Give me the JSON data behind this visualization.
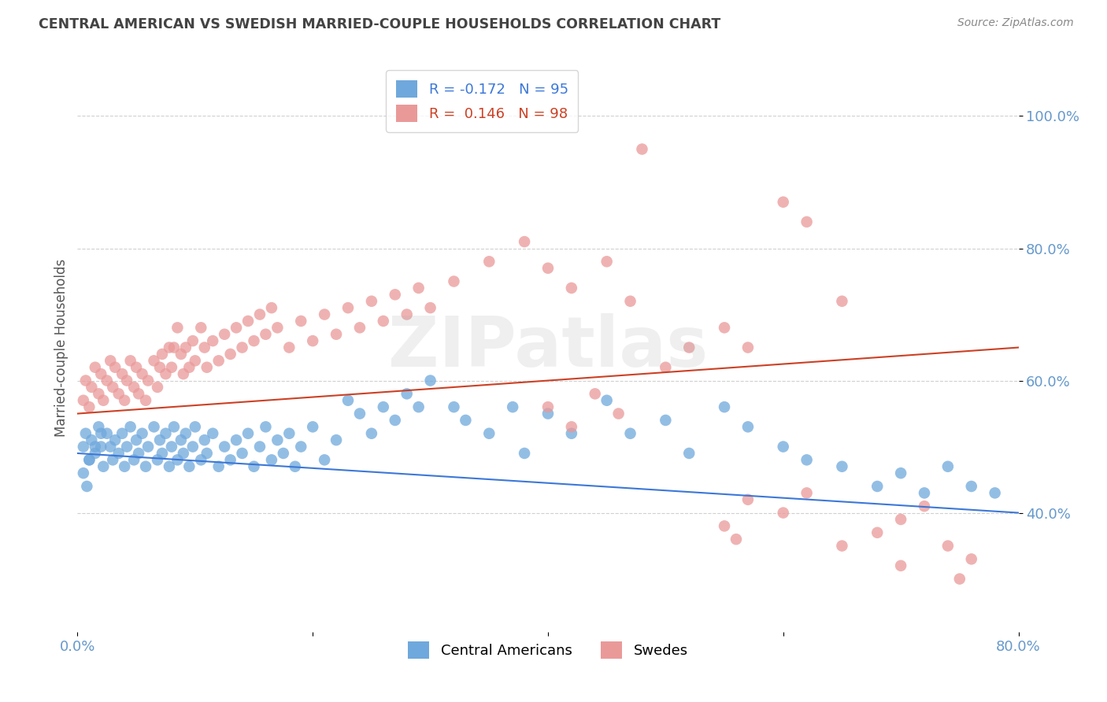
{
  "title": "CENTRAL AMERICAN VS SWEDISH MARRIED-COUPLE HOUSEHOLDS CORRELATION CHART",
  "source": "Source: ZipAtlas.com",
  "ylabel": "Married-couple Households",
  "ytick_labels": [
    "40.0%",
    "60.0%",
    "80.0%",
    "100.0%"
  ],
  "yticks": [
    0.4,
    0.6,
    0.8,
    1.0
  ],
  "xlim": [
    0.0,
    0.8
  ],
  "ylim": [
    0.22,
    1.08
  ],
  "watermark": "ZIPatlas",
  "blue_R": -0.172,
  "blue_N": 95,
  "pink_R": 0.146,
  "pink_N": 98,
  "blue_color": "#6fa8dc",
  "pink_color": "#ea9999",
  "blue_line_color": "#3c78d8",
  "pink_line_color": "#cc4125",
  "legend_label_blue": "Central Americans",
  "legend_label_pink": "Swedes",
  "title_color": "#434343",
  "axis_label_color": "#6699cc",
  "grid_color": "#d0d0d0",
  "blue_scatter_x": [
    0.005,
    0.007,
    0.01,
    0.012,
    0.015,
    0.018,
    0.02,
    0.022,
    0.025,
    0.028,
    0.03,
    0.032,
    0.035,
    0.038,
    0.04,
    0.042,
    0.045,
    0.048,
    0.05,
    0.052,
    0.055,
    0.058,
    0.06,
    0.065,
    0.068,
    0.07,
    0.072,
    0.075,
    0.078,
    0.08,
    0.082,
    0.085,
    0.088,
    0.09,
    0.092,
    0.095,
    0.098,
    0.1,
    0.105,
    0.108,
    0.11,
    0.115,
    0.12,
    0.125,
    0.13,
    0.135,
    0.14,
    0.145,
    0.15,
    0.155,
    0.16,
    0.165,
    0.17,
    0.175,
    0.18,
    0.185,
    0.19,
    0.2,
    0.21,
    0.22,
    0.23,
    0.24,
    0.25,
    0.26,
    0.27,
    0.28,
    0.29,
    0.3,
    0.32,
    0.33,
    0.35,
    0.37,
    0.38,
    0.4,
    0.42,
    0.45,
    0.47,
    0.5,
    0.52,
    0.55,
    0.57,
    0.6,
    0.62,
    0.65,
    0.68,
    0.7,
    0.72,
    0.74,
    0.76,
    0.78,
    0.005,
    0.008,
    0.01,
    0.015,
    0.02
  ],
  "blue_scatter_y": [
    0.5,
    0.52,
    0.48,
    0.51,
    0.49,
    0.53,
    0.5,
    0.47,
    0.52,
    0.5,
    0.48,
    0.51,
    0.49,
    0.52,
    0.47,
    0.5,
    0.53,
    0.48,
    0.51,
    0.49,
    0.52,
    0.47,
    0.5,
    0.53,
    0.48,
    0.51,
    0.49,
    0.52,
    0.47,
    0.5,
    0.53,
    0.48,
    0.51,
    0.49,
    0.52,
    0.47,
    0.5,
    0.53,
    0.48,
    0.51,
    0.49,
    0.52,
    0.47,
    0.5,
    0.48,
    0.51,
    0.49,
    0.52,
    0.47,
    0.5,
    0.53,
    0.48,
    0.51,
    0.49,
    0.52,
    0.47,
    0.5,
    0.53,
    0.48,
    0.51,
    0.57,
    0.55,
    0.52,
    0.56,
    0.54,
    0.58,
    0.56,
    0.6,
    0.56,
    0.54,
    0.52,
    0.56,
    0.49,
    0.55,
    0.52,
    0.57,
    0.52,
    0.54,
    0.49,
    0.56,
    0.53,
    0.5,
    0.48,
    0.47,
    0.44,
    0.46,
    0.43,
    0.47,
    0.44,
    0.43,
    0.46,
    0.44,
    0.48,
    0.5,
    0.52
  ],
  "pink_scatter_x": [
    0.005,
    0.007,
    0.01,
    0.012,
    0.015,
    0.018,
    0.02,
    0.022,
    0.025,
    0.028,
    0.03,
    0.032,
    0.035,
    0.038,
    0.04,
    0.042,
    0.045,
    0.048,
    0.05,
    0.052,
    0.055,
    0.058,
    0.06,
    0.065,
    0.068,
    0.07,
    0.072,
    0.075,
    0.078,
    0.08,
    0.082,
    0.085,
    0.088,
    0.09,
    0.092,
    0.095,
    0.098,
    0.1,
    0.105,
    0.108,
    0.11,
    0.115,
    0.12,
    0.125,
    0.13,
    0.135,
    0.14,
    0.145,
    0.15,
    0.155,
    0.16,
    0.165,
    0.17,
    0.18,
    0.19,
    0.2,
    0.21,
    0.22,
    0.23,
    0.24,
    0.25,
    0.26,
    0.27,
    0.28,
    0.29,
    0.3,
    0.32,
    0.35,
    0.38,
    0.4,
    0.42,
    0.45,
    0.47,
    0.48,
    0.5,
    0.52,
    0.55,
    0.57,
    0.6,
    0.62,
    0.65,
    0.68,
    0.7,
    0.72,
    0.74,
    0.76,
    0.4,
    0.42,
    0.44,
    0.46,
    0.55,
    0.56,
    0.57,
    0.6,
    0.62,
    0.65,
    0.7,
    0.75
  ],
  "pink_scatter_y": [
    0.57,
    0.6,
    0.56,
    0.59,
    0.62,
    0.58,
    0.61,
    0.57,
    0.6,
    0.63,
    0.59,
    0.62,
    0.58,
    0.61,
    0.57,
    0.6,
    0.63,
    0.59,
    0.62,
    0.58,
    0.61,
    0.57,
    0.6,
    0.63,
    0.59,
    0.62,
    0.64,
    0.61,
    0.65,
    0.62,
    0.65,
    0.68,
    0.64,
    0.61,
    0.65,
    0.62,
    0.66,
    0.63,
    0.68,
    0.65,
    0.62,
    0.66,
    0.63,
    0.67,
    0.64,
    0.68,
    0.65,
    0.69,
    0.66,
    0.7,
    0.67,
    0.71,
    0.68,
    0.65,
    0.69,
    0.66,
    0.7,
    0.67,
    0.71,
    0.68,
    0.72,
    0.69,
    0.73,
    0.7,
    0.74,
    0.71,
    0.75,
    0.78,
    0.81,
    0.77,
    0.74,
    0.78,
    0.72,
    0.95,
    0.62,
    0.65,
    0.68,
    0.65,
    0.87,
    0.84,
    0.72,
    0.37,
    0.39,
    0.41,
    0.35,
    0.33,
    0.56,
    0.53,
    0.58,
    0.55,
    0.38,
    0.36,
    0.42,
    0.4,
    0.43,
    0.35,
    0.32,
    0.3
  ]
}
